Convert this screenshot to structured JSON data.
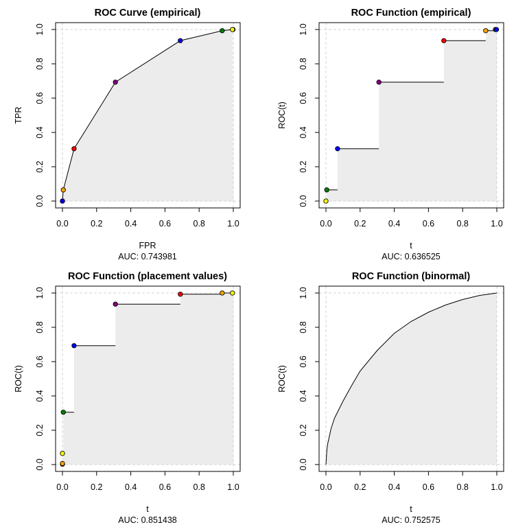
{
  "colors": {
    "fill": "#ececec",
    "grid": "#d3d3d3",
    "line": "#000000"
  },
  "chart_data": [
    {
      "type": "line",
      "title": "ROC Curve (empirical)",
      "xlabel": "FPR",
      "ylabel": "TPR",
      "subtitle": "AUC: 0.743981",
      "xlim": [
        0,
        1
      ],
      "ylim": [
        0,
        1
      ],
      "xticks": [
        "0.0",
        "0.2",
        "0.4",
        "0.6",
        "0.8",
        "1.0"
      ],
      "yticks": [
        "0.0",
        "0.2",
        "0.4",
        "0.6",
        "0.8",
        "1.0"
      ],
      "style": "polyline",
      "points": [
        {
          "x": 0,
          "y": 0,
          "color": "#000000"
        },
        {
          "x": 0,
          "y": 0,
          "color": "#0000ff"
        },
        {
          "x": 0.005,
          "y": 0.065,
          "color": "#ffa500"
        },
        {
          "x": 0.068,
          "y": 0.305,
          "color": "#ff0000"
        },
        {
          "x": 0.31,
          "y": 0.693,
          "color": "#800080"
        },
        {
          "x": 0.69,
          "y": 0.935,
          "color": "#0000ff"
        },
        {
          "x": 0.935,
          "y": 0.993,
          "color": "#008000"
        },
        {
          "x": 0.998,
          "y": 1.0,
          "color": "#ffa500"
        },
        {
          "x": 0.995,
          "y": 1.0,
          "color": "#ffff00"
        }
      ]
    },
    {
      "type": "line",
      "title": "ROC Function (empirical)",
      "xlabel": "t",
      "ylabel": "ROC(t)",
      "subtitle": "AUC: 0.636525",
      "xlim": [
        0,
        1
      ],
      "ylim": [
        0,
        1
      ],
      "xticks": [
        "0.0",
        "0.2",
        "0.4",
        "0.6",
        "0.8",
        "1.0"
      ],
      "yticks": [
        "0.0",
        "0.2",
        "0.4",
        "0.6",
        "0.8",
        "1.0"
      ],
      "style": "step",
      "points": [
        {
          "x": 0,
          "y": 0,
          "color": "#ffff00"
        },
        {
          "x": 0.005,
          "y": 0.065,
          "color": "#008000"
        },
        {
          "x": 0.068,
          "y": 0.305,
          "color": "#0000ff"
        },
        {
          "x": 0.31,
          "y": 0.693,
          "color": "#800080"
        },
        {
          "x": 0.69,
          "y": 0.935,
          "color": "#ff0000"
        },
        {
          "x": 0.935,
          "y": 0.993,
          "color": "#ffa500"
        },
        {
          "x": 0.992,
          "y": 1.0,
          "color": "#008000"
        },
        {
          "x": 0.998,
          "y": 1.0,
          "color": "#0000ff"
        }
      ]
    },
    {
      "type": "line",
      "title": "ROC Function (placement values)",
      "xlabel": "t",
      "ylabel": "ROC(t)",
      "subtitle": "AUC: 0.851438",
      "xlim": [
        0,
        1
      ],
      "ylim": [
        0,
        1
      ],
      "xticks": [
        "0.0",
        "0.2",
        "0.4",
        "0.6",
        "0.8",
        "1.0"
      ],
      "yticks": [
        "0.0",
        "0.2",
        "0.4",
        "0.6",
        "0.8",
        "1.0"
      ],
      "style": "step",
      "points": [
        {
          "x": 0,
          "y": 0.002,
          "color": "#ff0000"
        },
        {
          "x": 0,
          "y": 0.006,
          "color": "#ffa500"
        },
        {
          "x": 0,
          "y": 0.065,
          "color": "#ffff00"
        },
        {
          "x": 0.005,
          "y": 0.305,
          "color": "#008000"
        },
        {
          "x": 0.068,
          "y": 0.693,
          "color": "#0000ff"
        },
        {
          "x": 0.31,
          "y": 0.935,
          "color": "#800080"
        },
        {
          "x": 0.69,
          "y": 0.993,
          "color": "#ff0000"
        },
        {
          "x": 0.935,
          "y": 1.0,
          "color": "#ffa500"
        },
        {
          "x": 0.995,
          "y": 1.0,
          "color": "#ffff00"
        }
      ]
    },
    {
      "type": "line",
      "title": "ROC Function (binormal)",
      "xlabel": "t",
      "ylabel": "ROC(t)",
      "subtitle": "AUC: 0.752575",
      "xlim": [
        0,
        1
      ],
      "ylim": [
        0,
        1
      ],
      "xticks": [
        "0.0",
        "0.2",
        "0.4",
        "0.6",
        "0.8",
        "1.0"
      ],
      "yticks": [
        "0.0",
        "0.2",
        "0.4",
        "0.6",
        "0.8",
        "1.0"
      ],
      "style": "curve",
      "curve": {
        "x": [
          0,
          0.005,
          0.01,
          0.03,
          0.05,
          0.1,
          0.15,
          0.2,
          0.3,
          0.4,
          0.5,
          0.6,
          0.7,
          0.8,
          0.9,
          1.0
        ],
        "y": [
          0,
          0.08,
          0.12,
          0.21,
          0.27,
          0.37,
          0.46,
          0.545,
          0.665,
          0.765,
          0.835,
          0.888,
          0.93,
          0.962,
          0.986,
          1.0
        ]
      }
    }
  ]
}
